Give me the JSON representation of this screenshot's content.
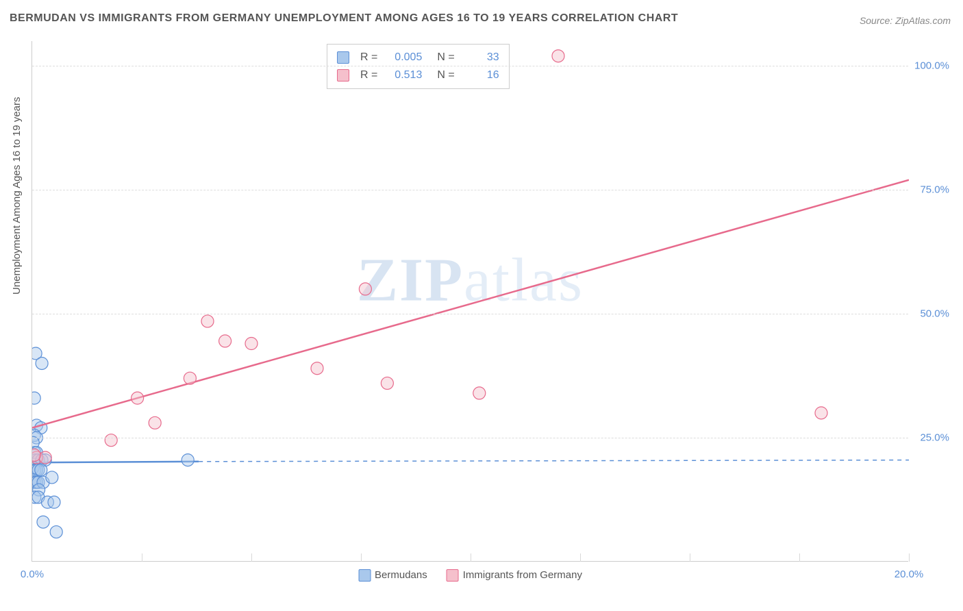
{
  "title": "BERMUDAN VS IMMIGRANTS FROM GERMANY UNEMPLOYMENT AMONG AGES 16 TO 19 YEARS CORRELATION CHART",
  "source": "Source: ZipAtlas.com",
  "watermark": {
    "bold": "ZIP",
    "light": "atlas"
  },
  "y_axis_label": "Unemployment Among Ages 16 to 19 years",
  "chart": {
    "type": "scatter",
    "background_color": "#ffffff",
    "grid_color": "#dddddd",
    "tick_color": "#5b8fd6",
    "xlim": [
      0,
      20
    ],
    "ylim": [
      0,
      105
    ],
    "x_ticks": [
      0,
      5,
      10,
      15,
      20
    ],
    "x_tick_labels": [
      "0.0%",
      "",
      "",
      "",
      "20.0%"
    ],
    "y_ticks": [
      25,
      50,
      75,
      100
    ],
    "y_tick_labels": [
      "25.0%",
      "50.0%",
      "75.0%",
      "100.0%"
    ],
    "x_minor_grid": [
      2.5,
      5,
      7.5,
      10,
      12.5,
      15,
      17.5,
      20
    ],
    "marker_radius": 9,
    "marker_opacity": 0.45,
    "series": [
      {
        "name": "Bermudans",
        "color_fill": "#a9c8ec",
        "color_stroke": "#5b8fd6",
        "R": "0.005",
        "N": "33",
        "trend": {
          "x1": 0,
          "y1": 20,
          "x2": 3.8,
          "y2": 20.2,
          "dash_after": true,
          "dash_x2": 20,
          "dash_y2": 20.5
        },
        "points": [
          [
            0.08,
            42
          ],
          [
            0.22,
            40
          ],
          [
            0.05,
            33
          ],
          [
            0.1,
            27.5
          ],
          [
            0.2,
            27
          ],
          [
            0.05,
            25.5
          ],
          [
            0.1,
            25
          ],
          [
            0.02,
            24
          ],
          [
            0.06,
            22
          ],
          [
            0.1,
            22
          ],
          [
            0.08,
            20.5
          ],
          [
            0.14,
            20.5
          ],
          [
            0.22,
            20.5
          ],
          [
            0.3,
            20.5
          ],
          [
            3.55,
            20.5
          ],
          [
            0.02,
            19
          ],
          [
            0.06,
            18.5
          ],
          [
            0.1,
            18.5
          ],
          [
            0.14,
            18.5
          ],
          [
            0.2,
            18.5
          ],
          [
            0.02,
            16.5
          ],
          [
            0.06,
            16
          ],
          [
            0.1,
            16
          ],
          [
            0.14,
            16
          ],
          [
            0.25,
            16
          ],
          [
            0.45,
            17
          ],
          [
            0.15,
            14.5
          ],
          [
            0.06,
            13
          ],
          [
            0.14,
            13
          ],
          [
            0.35,
            12
          ],
          [
            0.5,
            12
          ],
          [
            0.25,
            8
          ],
          [
            0.55,
            6
          ]
        ]
      },
      {
        "name": "Immigrants from Germany",
        "color_fill": "#f5c0cc",
        "color_stroke": "#e76a8c",
        "R": "0.513",
        "N": "16",
        "trend": {
          "x1": 0,
          "y1": 27,
          "x2": 20,
          "y2": 77
        },
        "points": [
          [
            12.0,
            102
          ],
          [
            10.2,
            34
          ],
          [
            7.6,
            55
          ],
          [
            8.1,
            36
          ],
          [
            6.5,
            39
          ],
          [
            5.0,
            44
          ],
          [
            4.4,
            44.5
          ],
          [
            4.0,
            48.5
          ],
          [
            3.6,
            37
          ],
          [
            2.8,
            28
          ],
          [
            2.4,
            33
          ],
          [
            1.8,
            24.5
          ],
          [
            18.0,
            30
          ],
          [
            0.1,
            21
          ],
          [
            0.3,
            21
          ],
          [
            0.05,
            21.5
          ]
        ]
      }
    ]
  },
  "bottom_legend": [
    {
      "label": "Bermudans",
      "fill": "#a9c8ec",
      "stroke": "#5b8fd6"
    },
    {
      "label": "Immigrants from Germany",
      "fill": "#f5c0cc",
      "stroke": "#e76a8c"
    }
  ]
}
